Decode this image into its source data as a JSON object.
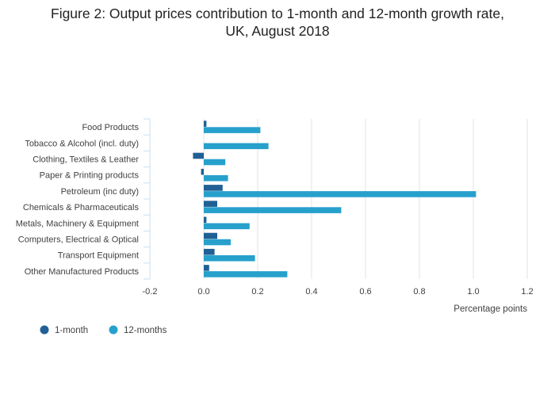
{
  "title_lines": [
    "Figure 2: Output prices contribution to 1-month and 12-month growth rate,",
    "UK, August 2018"
  ],
  "chart_data": {
    "type": "bar",
    "orientation": "horizontal",
    "categories": [
      "Food Products",
      "Tobacco & Alcohol (incl. duty)",
      "Clothing, Textiles & Leather",
      "Paper & Printing products",
      "Petroleum (inc duty)",
      "Chemicals & Pharmaceuticals",
      "Metals, Machinery & Equipment",
      "Computers, Electrical & Optical",
      "Transport Equipment",
      "Other Manufactured Products"
    ],
    "series": [
      {
        "name": "1-month",
        "color": "#206095",
        "values": [
          0.01,
          0.0,
          -0.04,
          -0.01,
          0.07,
          0.05,
          0.01,
          0.05,
          0.04,
          0.02
        ]
      },
      {
        "name": "12-months",
        "color": "#27a0cc",
        "values": [
          0.21,
          0.24,
          0.08,
          0.09,
          1.01,
          0.51,
          0.17,
          0.1,
          0.19,
          0.31
        ]
      }
    ],
    "xlabel": "Percentage points",
    "xlim": [
      -0.2,
      1.2
    ],
    "xticks": [
      "-0.2",
      "0.0",
      "0.2",
      "0.4",
      "0.6",
      "0.8",
      "1.0",
      "1.2"
    ],
    "grid": true,
    "legend_position": "bottom-left"
  }
}
